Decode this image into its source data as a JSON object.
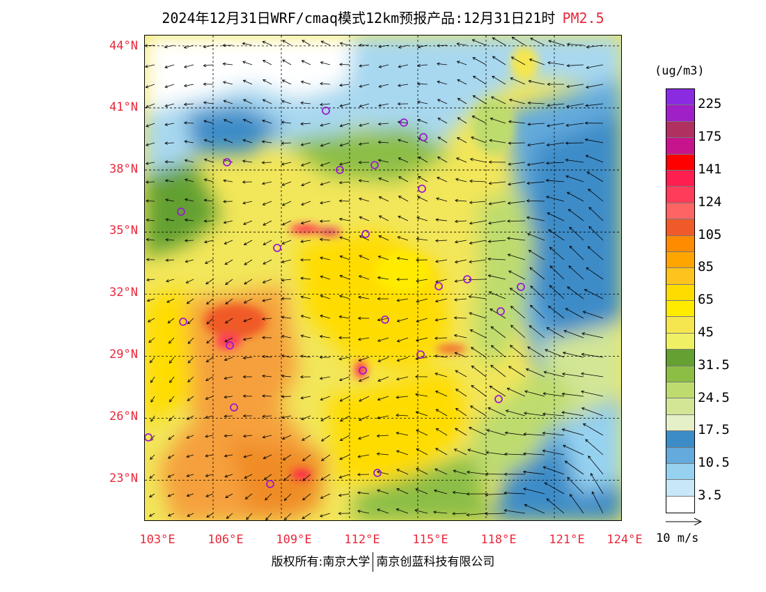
{
  "title": {
    "main": "2024年12月31日WRF/cmaq模式12km预报产品:12月31日21时",
    "variable": "PM2.5"
  },
  "map": {
    "lat_labels": [
      "44°N",
      "41°N",
      "38°N",
      "35°N",
      "32°N",
      "29°N",
      "26°N",
      "23°N"
    ],
    "lon_labels": [
      "103°E",
      "106°E",
      "109°E",
      "112°E",
      "115°E",
      "118°E",
      "121°E",
      "124°E"
    ],
    "lat_range": [
      21,
      44.5
    ],
    "lon_range": [
      103,
      124
    ],
    "station_marker": "purple-circle",
    "arrow_color": "#000000"
  },
  "legend": {
    "unit": "(ug/m3)",
    "colors": [
      "#8a2be2",
      "#a020c8",
      "#b03060",
      "#c8148c",
      "#ff0000",
      "#ff1e50",
      "#ff3c5a",
      "#ff6464",
      "#f05a28",
      "#ff8c00",
      "#ffa500",
      "#ffc31e",
      "#ffdc00",
      "#ffeb00",
      "#f5e650",
      "#f0f064",
      "#64a032",
      "#8cbe46",
      "#bedc6e",
      "#d2e696",
      "#e6f0c8",
      "#3c8cc8",
      "#64aadc",
      "#96d2f0",
      "#c8e8f8",
      "#ffffff"
    ],
    "tick_labels": [
      "225",
      "175",
      "141",
      "124",
      "105",
      "85",
      "65",
      "45",
      "31.5",
      "24.5",
      "17.5",
      "10.5",
      "3.5"
    ]
  },
  "wind_scale": {
    "label": "10 m/s"
  },
  "copyright": {
    "left": "版权所有:南京大学",
    "right": "南京创蓝科技有限公司"
  }
}
